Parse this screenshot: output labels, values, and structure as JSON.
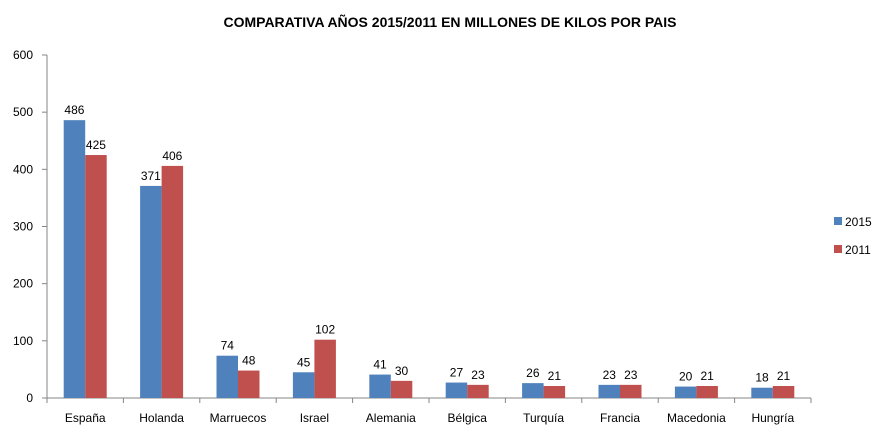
{
  "chart_data": {
    "type": "bar",
    "title": "COMPARATIVA AÑOS 2015/2011  EN MILLONES DE KILOS POR PAIS",
    "xlabel": "",
    "ylabel": "",
    "categories": [
      "España",
      "Holanda",
      "Marruecos",
      "Israel",
      "Alemania",
      "Bélgica",
      "Turquía",
      "Francia",
      "Macedonia",
      "Hungría"
    ],
    "series": [
      {
        "name": "2015",
        "color": "#4f81bd",
        "values": [
          486,
          371,
          74,
          45,
          41,
          27,
          26,
          23,
          20,
          18
        ]
      },
      {
        "name": "2011",
        "color": "#c0504d",
        "values": [
          425,
          406,
          48,
          102,
          30,
          23,
          21,
          23,
          21,
          21
        ]
      }
    ],
    "ylim": [
      0,
      600
    ],
    "yticks": [
      0,
      100,
      200,
      300,
      400,
      500,
      600
    ],
    "grid": false,
    "legend_position": "right",
    "data_labels": true
  }
}
